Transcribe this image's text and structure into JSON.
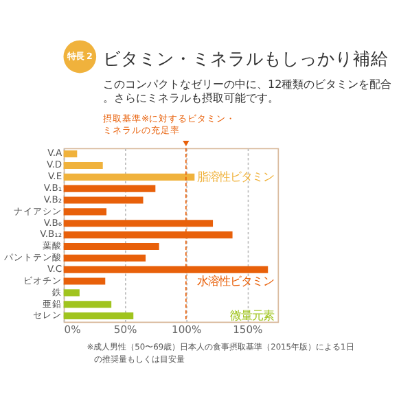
{
  "chart_data": {
    "type": "bar",
    "orientation": "horizontal",
    "title": "ビタミン・ミネラルもしっかり補給",
    "subtitle": "このコンパクトなゼリーの中に、12種類のビタミンを配合。さらにミネラルも摂取可能です。",
    "annotations": [
      "特長 2",
      "摂取基準※に対するビタミン・ミネラルの充足率",
      "※成人男性（50〜69歳）日本人の食事摂取基準（2015年版）による1日の推奨量もしくは目安量"
    ],
    "categories": [
      "V.A",
      "V.D",
      "V.E",
      "V.B₁",
      "V.B₂",
      "ナイアシン",
      "V.B₆",
      "V.B₁₂",
      "葉酸",
      "パントテン酸",
      "V.C",
      "ビオチン",
      "鉄",
      "亜鉛",
      "セレン"
    ],
    "series": [
      {
        "name": "脂溶性ビタミン",
        "color": "#f0b23c",
        "values": [
          11,
          32,
          107,
          null,
          null,
          null,
          null,
          null,
          null,
          null,
          null,
          null,
          null,
          null,
          null
        ]
      },
      {
        "name": "水溶性ビタミン",
        "color": "#e8600a",
        "values": [
          null,
          null,
          null,
          75,
          65,
          35,
          122,
          138,
          78,
          67,
          167,
          34,
          null,
          null,
          null
        ]
      },
      {
        "name": "微量元素",
        "color": "#a0c41e",
        "values": [
          null,
          null,
          null,
          null,
          null,
          null,
          null,
          null,
          null,
          null,
          null,
          null,
          13,
          39,
          57
        ]
      }
    ],
    "xlim": [
      0,
      175
    ],
    "xticks": [
      {
        "value": 0,
        "label": "0%"
      },
      {
        "value": 50,
        "label": "50%"
      },
      {
        "value": 100,
        "label": "100%"
      },
      {
        "value": 150,
        "label": "150%"
      }
    ],
    "ref_lines": [
      {
        "axis": "x",
        "value": 100,
        "color": "#e8600a",
        "line_style": "dashed"
      }
    ],
    "grid": "x"
  }
}
